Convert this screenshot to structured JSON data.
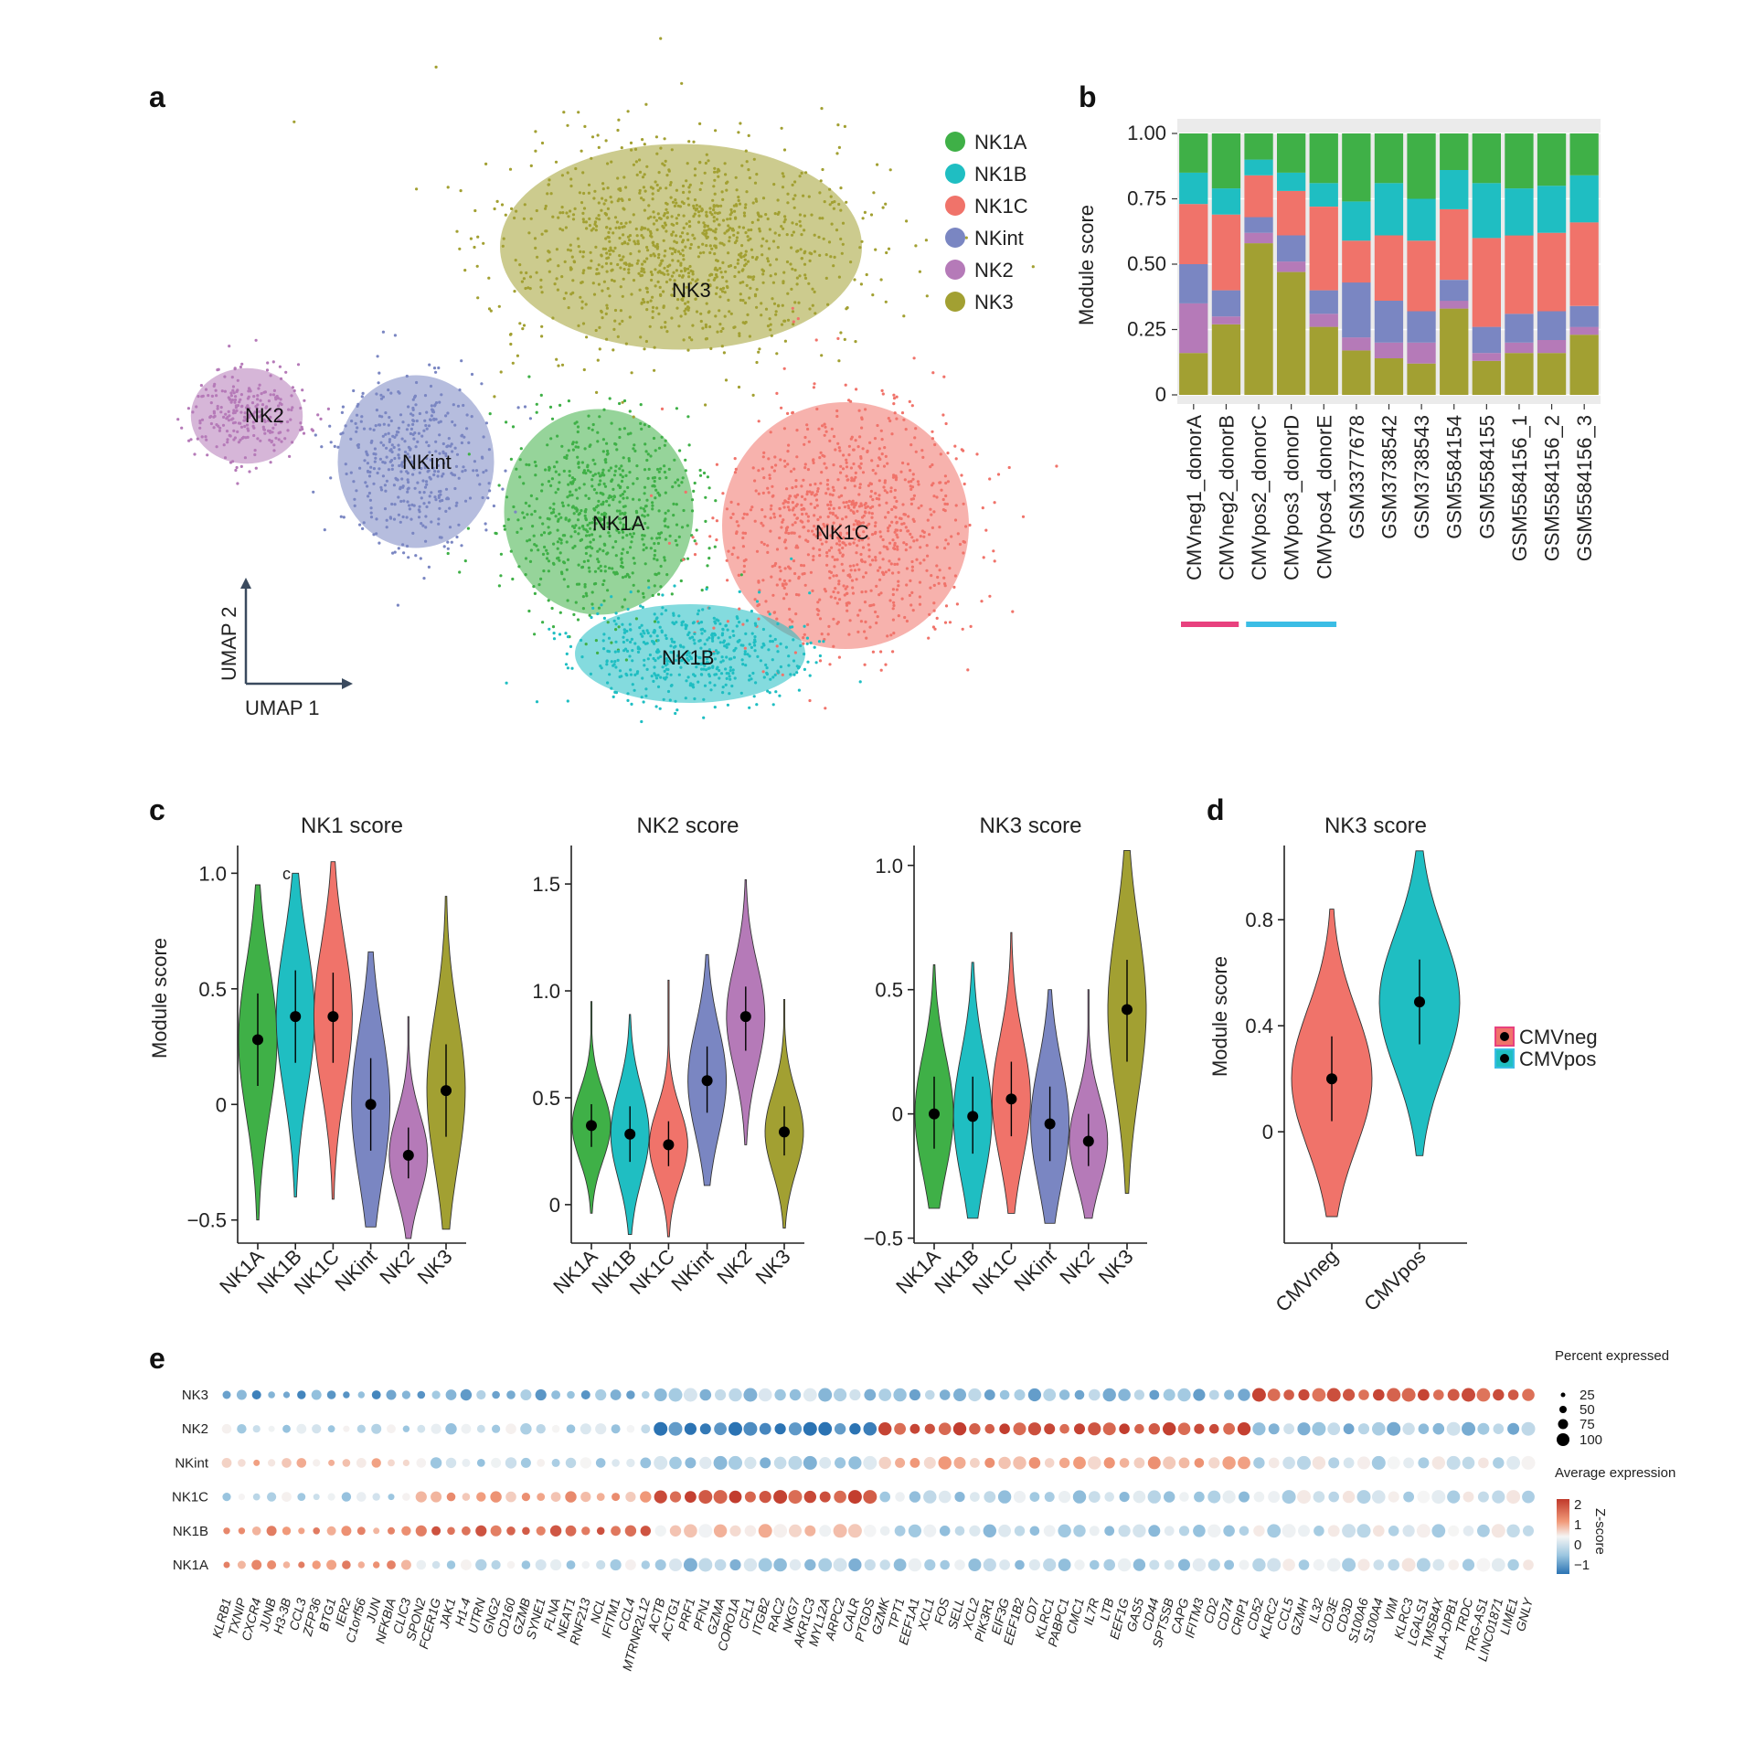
{
  "colors": {
    "NK1A": "#3fb047",
    "NK1B": "#1fbec2",
    "NK1C": "#f0736a",
    "NKint": "#7a86c2",
    "NK2": "#b57ab8",
    "NK3": "#a2a032",
    "CMVneg": "#f0736a",
    "CMVpos": "#1fbec2",
    "bar_underline_neg": "#e8417e",
    "bar_underline_pos": "#3bbde5"
  },
  "panel_labels": {
    "a": "a",
    "b": "b",
    "c": "c",
    "d": "d",
    "e": "e"
  },
  "umap": {
    "axis_x": "UMAP 1",
    "axis_y": "UMAP 2",
    "legend": [
      "NK1A",
      "NK1B",
      "NK1C",
      "NKint",
      "NK2",
      "NK3"
    ],
    "cluster_labels": [
      {
        "name": "NK3",
        "text": "NK3"
      },
      {
        "name": "NK2",
        "text": "NK2"
      },
      {
        "name": "NKint",
        "text": "NKint"
      },
      {
        "name": "NK1A",
        "text": "NK1A"
      },
      {
        "name": "NK1C",
        "text": "NK1C"
      },
      {
        "name": "NK1B",
        "text": "NK1B"
      }
    ]
  },
  "chart_data": [
    {
      "id": "b",
      "type": "bar",
      "stacked": true,
      "ylabel": "Module score",
      "ylim": [
        0,
        1
      ],
      "yticks": [
        "0",
        "0.25",
        "0.50",
        "0.75",
        "1.00"
      ],
      "categories": [
        "CMVneg1_donorA",
        "CMVneg2_donorB",
        "CMVpos2_donorC",
        "CMVpos3_donorD",
        "CMVpos4_donorE",
        "GSM3377678",
        "GSM3738542",
        "GSM3738543",
        "GSM5584154",
        "GSM5584155",
        "GSM5584156_1",
        "GSM5584156_2",
        "GSM5584156_3"
      ],
      "series": [
        {
          "name": "NK3",
          "values": [
            0.16,
            0.27,
            0.58,
            0.47,
            0.26,
            0.17,
            0.14,
            0.12,
            0.33,
            0.13,
            0.16,
            0.16,
            0.23
          ]
        },
        {
          "name": "NK2",
          "values": [
            0.19,
            0.03,
            0.04,
            0.04,
            0.05,
            0.05,
            0.06,
            0.08,
            0.03,
            0.03,
            0.04,
            0.05,
            0.03
          ]
        },
        {
          "name": "NKint",
          "values": [
            0.15,
            0.1,
            0.06,
            0.1,
            0.09,
            0.21,
            0.16,
            0.12,
            0.08,
            0.1,
            0.11,
            0.11,
            0.08
          ]
        },
        {
          "name": "NK1C",
          "values": [
            0.23,
            0.29,
            0.16,
            0.17,
            0.32,
            0.16,
            0.25,
            0.27,
            0.27,
            0.34,
            0.3,
            0.3,
            0.32
          ]
        },
        {
          "name": "NK1B",
          "values": [
            0.12,
            0.1,
            0.06,
            0.07,
            0.09,
            0.15,
            0.2,
            0.16,
            0.15,
            0.21,
            0.18,
            0.18,
            0.18
          ]
        },
        {
          "name": "NK1A",
          "values": [
            0.15,
            0.21,
            0.1,
            0.15,
            0.19,
            0.26,
            0.19,
            0.25,
            0.14,
            0.19,
            0.21,
            0.2,
            0.16
          ]
        }
      ],
      "groups": [
        {
          "name": "neg",
          "from": 0,
          "to": 1
        },
        {
          "name": "pos",
          "from": 2,
          "to": 4
        }
      ]
    },
    {
      "id": "c1",
      "type": "violin",
      "title": "NK1 score",
      "ylabel": "Module score",
      "ylim": [
        -0.6,
        1.12
      ],
      "yticks": [
        -0.5,
        0,
        0.5,
        1.0
      ],
      "ytick_labels": [
        "−0.5",
        "0",
        "0.5",
        "1.0"
      ],
      "annotation": "c",
      "categories": [
        "NK1A",
        "NK1B",
        "NK1C",
        "NKint",
        "NK2",
        "NK3"
      ],
      "median": [
        0.28,
        0.38,
        0.38,
        0.0,
        -0.22,
        0.06
      ],
      "q_low": [
        0.08,
        0.18,
        0.18,
        -0.2,
        -0.32,
        -0.14
      ],
      "q_high": [
        0.48,
        0.58,
        0.57,
        0.2,
        -0.1,
        0.26
      ],
      "min": [
        -0.5,
        -0.4,
        -0.41,
        -0.53,
        -0.58,
        -0.54
      ],
      "max": [
        0.95,
        1.0,
        1.05,
        0.66,
        0.38,
        0.9
      ]
    },
    {
      "id": "c2",
      "type": "violin",
      "title": "NK2 score",
      "ylim": [
        -0.18,
        1.68
      ],
      "yticks": [
        0,
        0.5,
        1.0,
        1.5
      ],
      "ytick_labels": [
        "0",
        "0.5",
        "1.0",
        "1.5"
      ],
      "categories": [
        "NK1A",
        "NK1B",
        "NK1C",
        "NKint",
        "NK2",
        "NK3"
      ],
      "median": [
        0.37,
        0.33,
        0.28,
        0.58,
        0.88,
        0.34
      ],
      "q_low": [
        0.27,
        0.2,
        0.18,
        0.43,
        0.72,
        0.23
      ],
      "q_high": [
        0.47,
        0.46,
        0.39,
        0.74,
        1.02,
        0.46
      ],
      "min": [
        -0.04,
        -0.14,
        -0.15,
        0.09,
        0.28,
        -0.11
      ],
      "max": [
        0.95,
        0.89,
        1.05,
        1.17,
        1.52,
        0.96
      ]
    },
    {
      "id": "c3",
      "type": "violin",
      "title": "NK3 score",
      "ylim": [
        -0.52,
        1.08
      ],
      "yticks": [
        -0.5,
        0,
        0.5,
        1.0
      ],
      "ytick_labels": [
        "−0.5",
        "0",
        "0.5",
        "1.0"
      ],
      "categories": [
        "NK1A",
        "NK1B",
        "NK1C",
        "NKint",
        "NK2",
        "NK3"
      ],
      "median": [
        0.0,
        -0.01,
        0.06,
        -0.04,
        -0.11,
        0.42
      ],
      "q_low": [
        -0.14,
        -0.16,
        -0.09,
        -0.19,
        -0.21,
        0.21
      ],
      "q_high": [
        0.15,
        0.15,
        0.21,
        0.11,
        0.0,
        0.62
      ],
      "min": [
        -0.38,
        -0.42,
        -0.4,
        -0.44,
        -0.42,
        -0.32
      ],
      "max": [
        0.6,
        0.61,
        0.73,
        0.5,
        0.5,
        1.06
      ]
    },
    {
      "id": "d",
      "type": "violin",
      "title": "NK3 score",
      "ylabel": "Module score",
      "ylim": [
        -0.42,
        1.08
      ],
      "yticks": [
        0,
        0.4,
        0.8
      ],
      "ytick_labels": [
        "0",
        "0.4",
        "0.8"
      ],
      "categories": [
        "CMVneg",
        "CMVpos"
      ],
      "legend": [
        "CMVneg",
        "CMVpos"
      ],
      "median": [
        0.2,
        0.49
      ],
      "q_low": [
        0.04,
        0.33
      ],
      "q_high": [
        0.36,
        0.65
      ],
      "min": [
        -0.32,
        -0.09
      ],
      "max": [
        0.84,
        1.06
      ]
    },
    {
      "id": "e",
      "type": "dotplot",
      "rows": [
        "NK3",
        "NK2",
        "NKint",
        "NK1C",
        "NK1B",
        "NK1A"
      ],
      "genes": [
        "KLRB1",
        "TXNIP",
        "CXCR4",
        "JUNB",
        "H3-3B",
        "CCL3",
        "ZFP36",
        "BTG1",
        "IER2",
        "C1orf56",
        "JUN",
        "NFKBIA",
        "CLIC3",
        "SPON2",
        "FCER1G",
        "JAK1",
        "H1-4",
        "UTRN",
        "GNG2",
        "CD160",
        "GZMB",
        "SYNE1",
        "FLNA",
        "NEAT1",
        "RNF213",
        "NCL",
        "IFITM1",
        "CCL4",
        "MTRNR2L12",
        "ACTB",
        "ACTG1",
        "PRF1",
        "PFN1",
        "GZMA",
        "CORO1A",
        "CFL1",
        "ITGB2",
        "RAC2",
        "NKG7",
        "AKR1C3",
        "MYL12A",
        "ARPC2",
        "CALR",
        "PTGDS",
        "GZMK",
        "TPT1",
        "EEF1A1",
        "XCL1",
        "FOS",
        "SELL",
        "XCL2",
        "PIK3R1",
        "EIF3G",
        "EEF1B2",
        "CD7",
        "KLRC1",
        "PABPC1",
        "CMC1",
        "IL7R",
        "LTB",
        "EEF1G",
        "GAS5",
        "CD44",
        "SPTSSB",
        "CAPG",
        "IFITM3",
        "CD2",
        "CD74",
        "CRIP1",
        "CD52",
        "KLRC2",
        "CCL5",
        "GZMH",
        "IL32",
        "CD3E",
        "CD3D",
        "S100A6",
        "S100A4",
        "VIM",
        "KLRC3",
        "LGALS1",
        "TMSB4X",
        "HLA-DPB1",
        "TRDC",
        "TRG-AS1",
        "LINC01871",
        "LIME1",
        "GNLY"
      ],
      "genes_italic": true,
      "size_legend_title": "Percent expressed",
      "size_legend": [
        "25",
        "50",
        "75",
        "100"
      ],
      "color_legend_title": "Average expression",
      "color_legend_ticks": [
        "2",
        "1",
        "0",
        "−1"
      ],
      "color_legend_side": "Z-score",
      "z_range": [
        -1.5,
        2.2
      ]
    }
  ]
}
